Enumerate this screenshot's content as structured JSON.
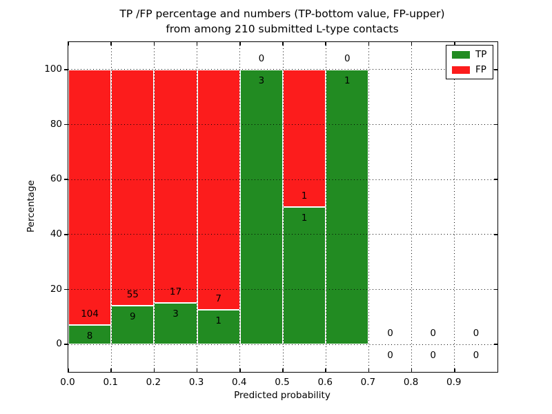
{
  "figure": {
    "title": "TP /FP percentage and numbers (TP-bottom value, FP-upper)\nfrom among 210 submitted L-type contacts"
  },
  "chart_data": {
    "type": "bar",
    "variant": "stacked-percentage",
    "title": "TP /FP percentage and numbers (TP-bottom value, FP-upper)\nfrom among 210 submitted L-type contacts",
    "xlabel": "Predicted probability",
    "ylabel": "Percentage",
    "xlim": [
      0.0,
      1.0
    ],
    "ylim": [
      -10,
      110
    ],
    "grid": true,
    "grid_style": "dotted",
    "legend_position": "upper right",
    "total_contacts": 210,
    "xtick_values": [
      0.0,
      0.1,
      0.2,
      0.3,
      0.4,
      0.5,
      0.6,
      0.7,
      0.8,
      0.9
    ],
    "xtick_labels": [
      "0.0",
      "0.1",
      "0.2",
      "0.3",
      "0.4",
      "0.5",
      "0.6",
      "0.7",
      "0.8",
      "0.9"
    ],
    "ytick_values": [
      0,
      20,
      40,
      60,
      80,
      100
    ],
    "ytick_labels": [
      "0",
      "20",
      "40",
      "60",
      "80",
      "100"
    ],
    "series": [
      {
        "name": "TP",
        "color": "#228B22"
      },
      {
        "name": "FP",
        "color": "#FC1C1C"
      }
    ],
    "bins": [
      {
        "x0": 0.0,
        "x1": 0.1,
        "tp": 8,
        "fp": 104,
        "tp_percent": 7.14
      },
      {
        "x0": 0.1,
        "x1": 0.2,
        "tp": 9,
        "fp": 55,
        "tp_percent": 14.06
      },
      {
        "x0": 0.2,
        "x1": 0.3,
        "tp": 3,
        "fp": 17,
        "tp_percent": 15.0
      },
      {
        "x0": 0.3,
        "x1": 0.4,
        "tp": 1,
        "fp": 7,
        "tp_percent": 12.5
      },
      {
        "x0": 0.4,
        "x1": 0.5,
        "tp": 3,
        "fp": 0,
        "tp_percent": 100.0
      },
      {
        "x0": 0.5,
        "x1": 0.6,
        "tp": 1,
        "fp": 1,
        "tp_percent": 50.0
      },
      {
        "x0": 0.6,
        "x1": 0.7,
        "tp": 1,
        "fp": 0,
        "tp_percent": 100.0
      },
      {
        "x0": 0.7,
        "x1": 0.8,
        "tp": 0,
        "fp": 0,
        "tp_percent": null
      },
      {
        "x0": 0.8,
        "x1": 0.9,
        "tp": 0,
        "fp": 0,
        "tp_percent": null
      },
      {
        "x0": 0.9,
        "x1": 1.0,
        "tp": 0,
        "fp": 0,
        "tp_percent": null
      }
    ]
  }
}
